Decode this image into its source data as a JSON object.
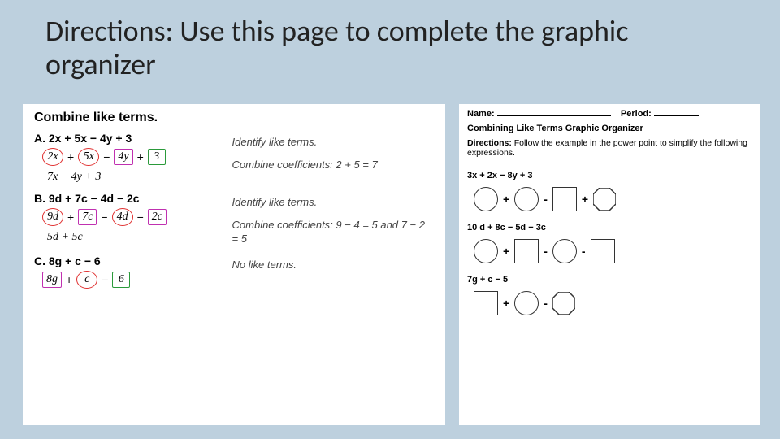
{
  "title": "Directions:  Use this page to complete the graphic organizer",
  "left": {
    "heading": "Combine like terms.",
    "problems": [
      {
        "label": "A.  2x + 5x − 4y + 3",
        "terms": [
          {
            "text": "2x",
            "shape": "circ",
            "color": "#e03030"
          },
          {
            "op": "+"
          },
          {
            "text": "5x",
            "shape": "circ",
            "color": "#e03030"
          },
          {
            "op": "−"
          },
          {
            "text": "4y",
            "shape": "rect",
            "color": "#c030b0"
          },
          {
            "op": "+"
          },
          {
            "text": "3",
            "shape": "rect",
            "color": "#2a9a3a"
          }
        ],
        "result": "7x − 4y + 3",
        "notes": [
          "Identify like terms.",
          "Combine coefficients: 2 + 5 = 7"
        ]
      },
      {
        "label": "B.  9d + 7c − 4d − 2c",
        "terms": [
          {
            "text": "9d",
            "shape": "circ",
            "color": "#e03030"
          },
          {
            "op": "+"
          },
          {
            "text": "7c",
            "shape": "rect",
            "color": "#c030b0"
          },
          {
            "op": "−"
          },
          {
            "text": "4d",
            "shape": "circ",
            "color": "#e03030"
          },
          {
            "op": "−"
          },
          {
            "text": "2c",
            "shape": "rect",
            "color": "#c030b0"
          }
        ],
        "result": "5d + 5c",
        "notes": [
          "Identify like terms.",
          "Combine coefficients: 9 − 4 = 5 and 7 − 2 = 5"
        ]
      },
      {
        "label": "C.  8g + c − 6",
        "terms": [
          {
            "text": "8g",
            "shape": "rect",
            "color": "#c030b0"
          },
          {
            "op": "+"
          },
          {
            "text": "c",
            "shape": "circ",
            "color": "#e03030"
          },
          {
            "op": "−"
          },
          {
            "text": "6",
            "shape": "rect",
            "color": "#2a9a3a"
          }
        ],
        "result": "",
        "notes": [
          "No like terms."
        ]
      }
    ]
  },
  "right": {
    "name_label": "Name:",
    "period_label": "Period:",
    "title": "Combining Like Terms Graphic Organizer",
    "directions_label": "Directions:",
    "directions_text": "Follow the example in the power point to simplify the following expressions.",
    "problems": [
      {
        "expr": "3x + 2x − 8y + 3",
        "shapes": [
          "circle",
          "+",
          "circle",
          "-",
          "square",
          "+",
          "octa"
        ]
      },
      {
        "expr": "10 d + 8c − 5d − 3c",
        "shapes": [
          "circle",
          "+",
          "square",
          "-",
          "circle",
          "-",
          "square"
        ]
      },
      {
        "expr": "7g + c − 5",
        "shapes": [
          "square",
          "+",
          "circle",
          "-",
          "octa"
        ]
      }
    ]
  },
  "colors": {
    "page_bg": "#bdd0de",
    "panel_bg": "#ffffff",
    "text": "#222222",
    "hint_text": "#444444"
  }
}
